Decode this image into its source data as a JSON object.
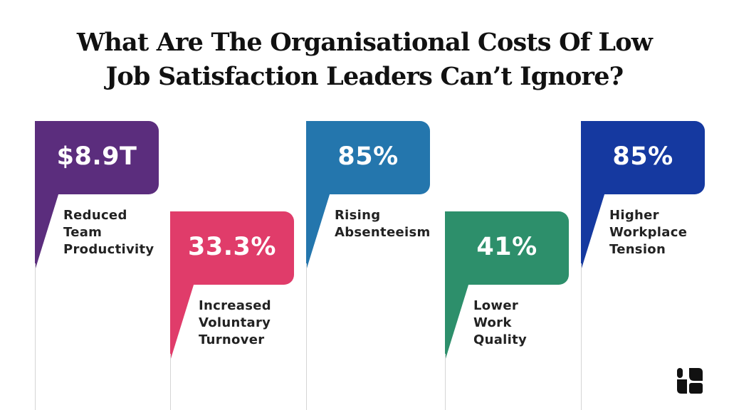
{
  "title": {
    "line1": "What Are The Organisational Costs Of Low",
    "line2": "Job Satisfaction Leaders Can’t Ignore?"
  },
  "cards": [
    {
      "value": "$8.9T",
      "label": [
        "Reduced",
        "Team",
        "Productivity"
      ],
      "color": "#5b2d7d"
    },
    {
      "value": "33.3%",
      "label": [
        "Increased",
        "Voluntary",
        "Turnover"
      ],
      "color": "#e03c6a"
    },
    {
      "value": "85%",
      "label": [
        "Rising",
        "Absenteeism"
      ],
      "color": "#2476ad"
    },
    {
      "value": "41%",
      "label": [
        "Lower",
        "Work",
        "Quality"
      ],
      "color": "#2d8f6b"
    },
    {
      "value": "85%",
      "label": [
        "Higher",
        "Workplace",
        "Tension"
      ],
      "color": "#1539a0"
    }
  ],
  "logo": {
    "icon": "brand-logo-icon",
    "color": "#111111"
  }
}
